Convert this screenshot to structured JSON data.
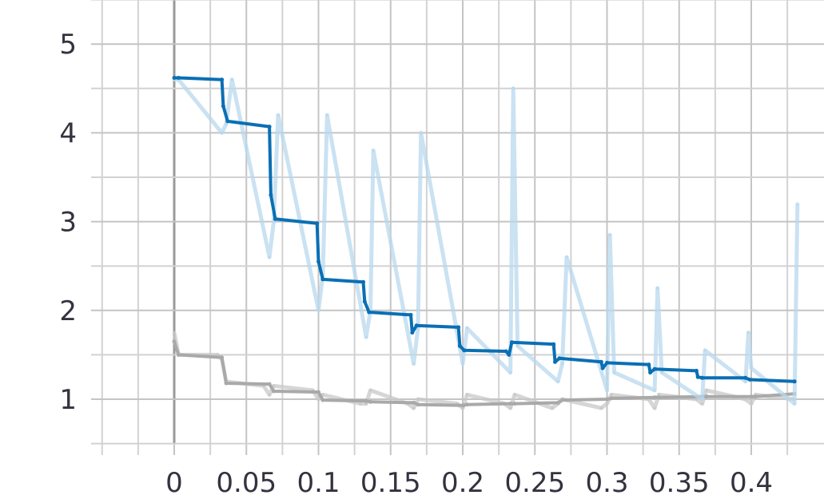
{
  "chart_data": {
    "type": "line",
    "title": "",
    "xlabel": "",
    "ylabel": "",
    "xlim": [
      -0.05,
      0.45
    ],
    "ylim": [
      0.5,
      5.5
    ],
    "grid": true,
    "legend": "none",
    "x_ticks": [
      {
        "value": 0,
        "label": "0"
      },
      {
        "value": 0.05,
        "label": "0.05"
      },
      {
        "value": 0.1,
        "label": "0.1"
      },
      {
        "value": 0.15,
        "label": "0.15"
      },
      {
        "value": 0.2,
        "label": "0.2"
      },
      {
        "value": 0.25,
        "label": "0.25"
      },
      {
        "value": 0.3,
        "label": "0.3"
      },
      {
        "value": 0.35,
        "label": "0.35"
      },
      {
        "value": 0.4,
        "label": "0.4"
      }
    ],
    "y_ticks": [
      {
        "value": 1,
        "label": "1"
      },
      {
        "value": 2,
        "label": "2"
      },
      {
        "value": 3,
        "label": "3"
      },
      {
        "value": 4,
        "label": "4"
      },
      {
        "value": 5,
        "label": "5"
      }
    ],
    "x_minor_grid": [
      -0.05,
      -0.025,
      0.025,
      0.075,
      0.125,
      0.175,
      0.225,
      0.275,
      0.325,
      0.375,
      0.425
    ],
    "y_minor_grid": [
      0.5,
      1.5,
      2.5,
      3.5,
      4.5,
      5.5
    ],
    "series": [
      {
        "color": "#c8c8c8",
        "role": "raw",
        "x": [
          0,
          0.003,
          0.03,
          0.033,
          0.036,
          0.062,
          0.066,
          0.069,
          0.096,
          0.1,
          0.103,
          0.129,
          0.133,
          0.136,
          0.162,
          0.166,
          0.169,
          0.196,
          0.2,
          0.203,
          0.229,
          0.233,
          0.236,
          0.262,
          0.266,
          0.269,
          0.296,
          0.3,
          0.303,
          0.329,
          0.333,
          0.336,
          0.362,
          0.366,
          0.369,
          0.396,
          0.4,
          0.403,
          0.43
        ],
        "y": [
          1.75,
          1.5,
          1.5,
          1.45,
          1.2,
          1.15,
          1.05,
          1.15,
          1.1,
          1.0,
          1.05,
          0.95,
          0.95,
          1.1,
          0.95,
          0.9,
          1.0,
          0.95,
          0.9,
          1.05,
          0.95,
          0.9,
          1.05,
          0.9,
          0.95,
          1.0,
          0.9,
          0.95,
          1.05,
          1.0,
          0.9,
          1.05,
          1.0,
          0.95,
          1.1,
          1.0,
          0.95,
          1.05,
          1.0
        ]
      },
      {
        "color": "#a9a9a9",
        "role": "smoothed",
        "x": [
          0,
          0.003,
          0.033,
          0.036,
          0.066,
          0.069,
          0.1,
          0.103,
          0.133,
          0.136,
          0.166,
          0.169,
          0.2,
          0.203,
          0.233,
          0.236,
          0.266,
          0.269,
          0.3,
          0.303,
          0.333,
          0.336,
          0.366,
          0.369,
          0.4,
          0.403,
          0.43
        ],
        "y": [
          1.65,
          1.5,
          1.47,
          1.18,
          1.17,
          1.09,
          1.08,
          0.99,
          0.98,
          0.97,
          0.96,
          0.94,
          0.93,
          0.94,
          0.95,
          0.95,
          0.96,
          0.99,
          1.0,
          1.01,
          1.02,
          1.02,
          1.03,
          1.03,
          1.03,
          1.03,
          1.06
        ]
      },
      {
        "color": "#b8d8ee",
        "role": "raw",
        "x": [
          0,
          0.003,
          0.033,
          0.036,
          0.04,
          0.066,
          0.069,
          0.072,
          0.1,
          0.103,
          0.106,
          0.133,
          0.136,
          0.138,
          0.166,
          0.169,
          0.171,
          0.2,
          0.203,
          0.233,
          0.235,
          0.238,
          0.266,
          0.269,
          0.272,
          0.3,
          0.302,
          0.305,
          0.333,
          0.335,
          0.338,
          0.366,
          0.368,
          0.396,
          0.398,
          0.4,
          0.43,
          0.432
        ],
        "y": [
          4.6,
          4.6,
          4.0,
          4.1,
          4.6,
          2.6,
          3.0,
          4.2,
          2.0,
          2.4,
          4.2,
          1.7,
          2.0,
          3.8,
          1.4,
          1.8,
          4.0,
          1.4,
          1.8,
          1.3,
          4.5,
          1.6,
          1.2,
          1.4,
          2.6,
          1.1,
          2.85,
          1.3,
          1.1,
          2.25,
          1.3,
          1.0,
          1.55,
          1.2,
          1.75,
          1.35,
          0.95,
          3.2
        ]
      },
      {
        "color": "#0a6fb4",
        "role": "smoothed",
        "x": [
          0,
          0.003,
          0.033,
          0.034,
          0.037,
          0.066,
          0.067,
          0.07,
          0.099,
          0.1,
          0.103,
          0.131,
          0.132,
          0.135,
          0.164,
          0.165,
          0.168,
          0.197,
          0.198,
          0.201,
          0.23,
          0.232,
          0.234,
          0.263,
          0.264,
          0.267,
          0.296,
          0.297,
          0.3,
          0.329,
          0.33,
          0.333,
          0.362,
          0.363,
          0.366,
          0.396,
          0.399,
          0.43
        ],
        "y": [
          4.62,
          4.62,
          4.6,
          4.3,
          4.13,
          4.07,
          3.3,
          3.03,
          2.98,
          2.55,
          2.35,
          2.32,
          2.1,
          1.98,
          1.95,
          1.75,
          1.83,
          1.81,
          1.6,
          1.55,
          1.54,
          1.5,
          1.64,
          1.62,
          1.42,
          1.46,
          1.42,
          1.35,
          1.41,
          1.39,
          1.3,
          1.34,
          1.32,
          1.25,
          1.24,
          1.24,
          1.22,
          1.2
        ]
      }
    ]
  }
}
